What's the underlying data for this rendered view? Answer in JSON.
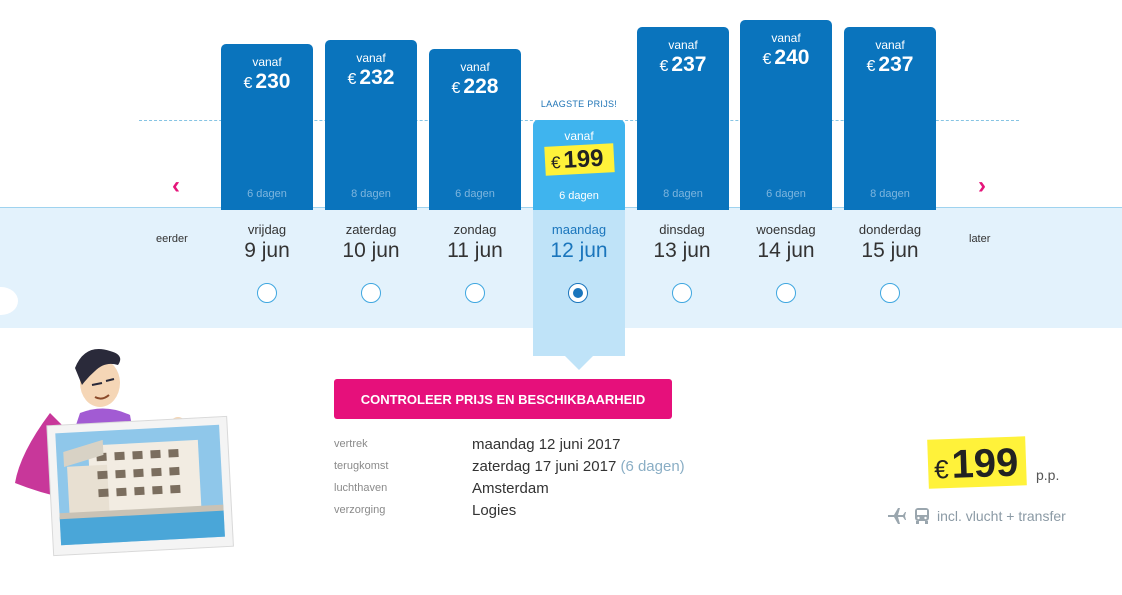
{
  "nav": {
    "earlier_label": "eerder",
    "later_label": "later"
  },
  "lowest_label": "LAAGSTE PRIJS!",
  "currency": "€",
  "days": [
    {
      "weekday": "vrijdag",
      "date": "9 jun",
      "from_label": "vanaf",
      "price": "230",
      "duration": "6 dagen",
      "selected": false
    },
    {
      "weekday": "zaterdag",
      "date": "10 jun",
      "from_label": "vanaf",
      "price": "232",
      "duration": "8 dagen",
      "selected": false
    },
    {
      "weekday": "zondag",
      "date": "11 jun",
      "from_label": "vanaf",
      "price": "228",
      "duration": "6 dagen",
      "selected": false
    },
    {
      "weekday": "maandag",
      "date": "12 jun",
      "from_label": "vanaf",
      "price": "199",
      "duration": "6 dagen",
      "selected": true
    },
    {
      "weekday": "dinsdag",
      "date": "13 jun",
      "from_label": "vanaf",
      "price": "237",
      "duration": "8 dagen",
      "selected": false
    },
    {
      "weekday": "woensdag",
      "date": "14 jun",
      "from_label": "vanaf",
      "price": "240",
      "duration": "6 dagen",
      "selected": false
    },
    {
      "weekday": "donderdag",
      "date": "15 jun",
      "from_label": "vanaf",
      "price": "237",
      "duration": "8 dagen",
      "selected": false
    }
  ],
  "cta_label": "CONTROLEER PRIJS EN BESCHIKBAARHEID",
  "details": {
    "departure_label": "vertrek",
    "departure_value": "maandag 12 juni 2017",
    "return_label": "terugkomst",
    "return_value": "zaterdag 17 juni 2017",
    "return_duration": "(6 dagen)",
    "airport_label": "luchthaven",
    "airport_value": "Amsterdam",
    "board_label": "verzorging",
    "board_value": "Logies"
  },
  "summary": {
    "currency": "€",
    "price": "199",
    "per_person": "p.p.",
    "includes": "incl. vlucht + transfer"
  },
  "colors": {
    "bar": "#0a74bd",
    "selected_bar": "#3fb4ee",
    "accent": "#e6107b",
    "highlight": "#fff23a",
    "band": "#e3f2fc"
  },
  "icons": [
    "chevron-left-icon",
    "chevron-right-icon",
    "plane-icon",
    "bus-icon"
  ]
}
